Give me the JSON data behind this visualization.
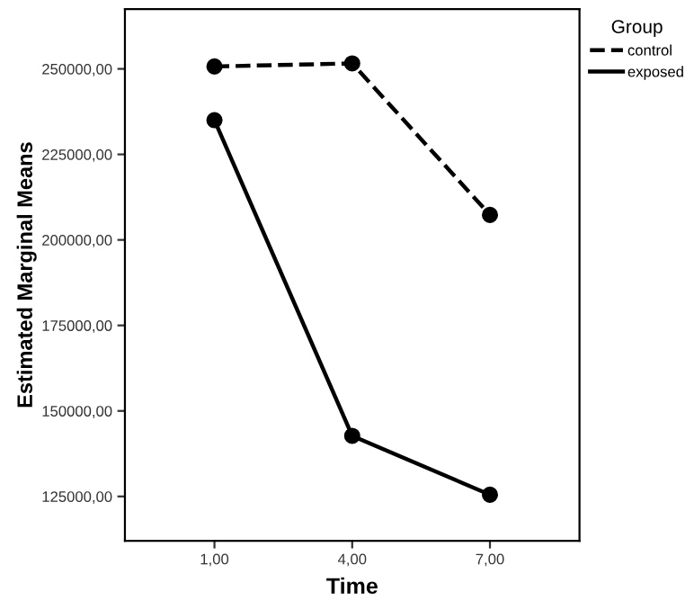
{
  "chart_data": {
    "type": "line",
    "xlabel": "Time",
    "ylabel": "Estimated Marginal Means",
    "legend_title": "Group",
    "legend": "top right",
    "marker": "circle",
    "grid": false,
    "categories": [
      "1,00",
      "4,00",
      "7,00"
    ],
    "series": [
      {
        "name": "control",
        "color": "#000000",
        "line_style": "dashed",
        "values": [
          250700,
          251600,
          207300
        ]
      },
      {
        "name": "exposed",
        "color": "#000000",
        "line_style": "solid",
        "values": [
          235000,
          142700,
          125500
        ]
      }
    ],
    "ylim": [
      112000,
      267500
    ],
    "yticks": [
      {
        "value": 125000,
        "label": "125000,00"
      },
      {
        "value": 150000,
        "label": "150000,00"
      },
      {
        "value": 175000,
        "label": "175000,00"
      },
      {
        "value": 200000,
        "label": "200000,00"
      },
      {
        "value": 225000,
        "label": "225000,00"
      },
      {
        "value": 250000,
        "label": "250000,00"
      }
    ]
  }
}
